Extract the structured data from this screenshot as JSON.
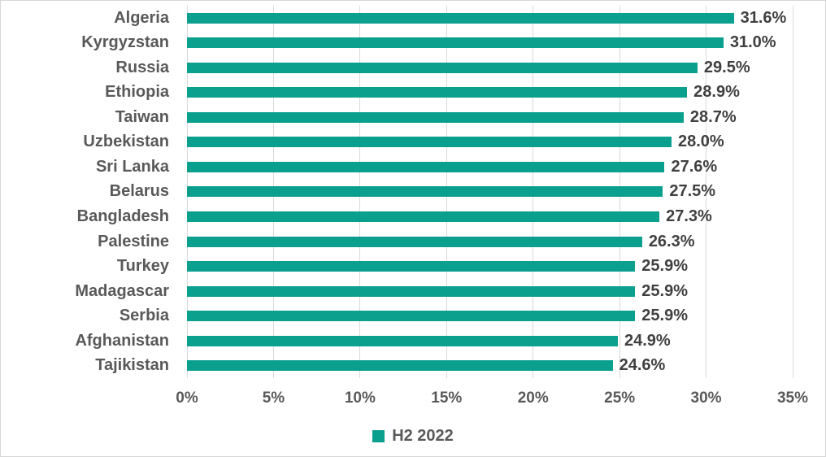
{
  "chart_data": {
    "type": "bar",
    "orientation": "horizontal",
    "title": "",
    "xlabel": "",
    "ylabel": "",
    "categories": [
      "Algeria",
      "Kyrgyzstan",
      "Russia",
      "Ethiopia",
      "Taiwan",
      "Uzbekistan",
      "Sri Lanka",
      "Belarus",
      "Bangladesh",
      "Palestine",
      "Turkey",
      "Madagascar",
      "Serbia",
      "Afghanistan",
      "Tajikistan"
    ],
    "values": [
      31.6,
      31.0,
      29.5,
      28.9,
      28.7,
      28.0,
      27.6,
      27.5,
      27.3,
      26.3,
      25.9,
      25.9,
      25.9,
      24.9,
      24.6
    ],
    "value_labels": [
      "31.6%",
      "31.0%",
      "29.5%",
      "28.9%",
      "28.7%",
      "28.0%",
      "27.6%",
      "27.5%",
      "27.3%",
      "26.3%",
      "25.9%",
      "25.9%",
      "25.9%",
      "24.9%",
      "24.6%"
    ],
    "xlim": [
      0,
      35
    ],
    "xticks": [
      "0%",
      "5%",
      "10%",
      "15%",
      "20%",
      "25%",
      "30%",
      "35%"
    ],
    "xtick_values": [
      0,
      5,
      10,
      15,
      20,
      25,
      30,
      35
    ],
    "grid": "vertical",
    "legend": {
      "position": "bottom",
      "entries": [
        {
          "label": "H2 2022",
          "color": "#0b9f8d"
        }
      ]
    },
    "colors": {
      "bar": "#0b9f8d",
      "category_label": "#595959",
      "data_label": "#404040",
      "tick_label": "#595959",
      "gridline": "#d9d9d9",
      "frame_border": "#d6d6d6",
      "background": "#ffffff"
    }
  }
}
